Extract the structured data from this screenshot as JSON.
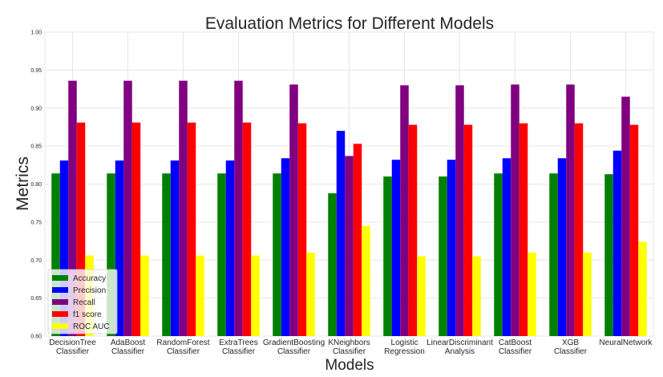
{
  "chart_data": {
    "type": "bar",
    "title": "Evaluation Metrics for Different Models",
    "xlabel": "Models",
    "ylabel": "Metrics",
    "ylim": [
      0.6,
      1.0
    ],
    "yticks": [
      "0.60",
      "0.65",
      "0.70",
      "0.75",
      "0.80",
      "0.85",
      "0.90",
      "0.95",
      "1.00"
    ],
    "categories": [
      [
        "DecisionTree",
        "Classifier"
      ],
      [
        "AdaBoost",
        "Classifier"
      ],
      [
        "RandomForest",
        "Classifier"
      ],
      [
        "ExtraTrees",
        "Classifier"
      ],
      [
        "GradientBoosting",
        "Classifier"
      ],
      [
        "KNeighbors",
        "Classifier"
      ],
      [
        "Logistic",
        "Regression"
      ],
      [
        "LinearDiscriminant",
        "Analysis"
      ],
      [
        "CatBoost",
        "Classifier"
      ],
      [
        "XGB",
        "Classifier"
      ],
      [
        "NeuralNetwork"
      ]
    ],
    "series": [
      {
        "name": "Accuracy",
        "color": "#008000",
        "values": [
          0.814,
          0.814,
          0.814,
          0.814,
          0.814,
          0.788,
          0.81,
          0.81,
          0.814,
          0.814,
          0.813
        ]
      },
      {
        "name": "Precision",
        "color": "#0000ff",
        "values": [
          0.831,
          0.831,
          0.831,
          0.831,
          0.834,
          0.87,
          0.832,
          0.832,
          0.834,
          0.834,
          0.844
        ]
      },
      {
        "name": "Recall",
        "color": "#800080",
        "values": [
          0.936,
          0.936,
          0.936,
          0.936,
          0.931,
          0.837,
          0.93,
          0.93,
          0.931,
          0.931,
          0.915
        ]
      },
      {
        "name": "f1 score",
        "color": "#ff0000",
        "values": [
          0.881,
          0.881,
          0.881,
          0.881,
          0.88,
          0.853,
          0.878,
          0.878,
          0.88,
          0.88,
          0.878
        ]
      },
      {
        "name": "ROC AUC",
        "color": "#ffff00",
        "values": [
          0.706,
          0.706,
          0.706,
          0.706,
          0.71,
          0.745,
          0.705,
          0.705,
          0.71,
          0.71,
          0.724
        ]
      }
    ],
    "legend": "lower-left",
    "grid": true
  }
}
